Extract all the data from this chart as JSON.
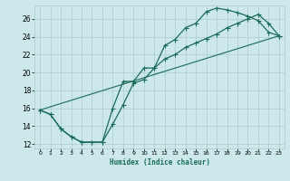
{
  "xlabel": "Humidex (Indice chaleur)",
  "bg_color": "#cce8ea",
  "grid_color": "#aacccc",
  "line_color": "#1a6b5a",
  "xlim": [
    -0.5,
    23.5
  ],
  "ylim": [
    11.5,
    27.5
  ],
  "xticks": [
    0,
    1,
    2,
    3,
    4,
    5,
    6,
    7,
    8,
    9,
    10,
    11,
    12,
    13,
    14,
    15,
    16,
    17,
    18,
    19,
    20,
    21,
    22,
    23
  ],
  "yticks": [
    12,
    14,
    16,
    18,
    20,
    22,
    24,
    26
  ],
  "line1_x": [
    0,
    1,
    2,
    3,
    4,
    5,
    6,
    7,
    8,
    9,
    10,
    11,
    12,
    13,
    14,
    15,
    16,
    17,
    18,
    19,
    20,
    21,
    22,
    23
  ],
  "line1_y": [
    15.8,
    15.3,
    13.7,
    12.8,
    12.2,
    12.2,
    12.2,
    14.2,
    16.4,
    18.8,
    19.2,
    20.5,
    23.0,
    23.7,
    25.0,
    25.5,
    26.8,
    27.2,
    27.0,
    26.7,
    26.3,
    25.8,
    24.5,
    24.1
  ],
  "line2_x": [
    0,
    1,
    2,
    3,
    4,
    5,
    6,
    7,
    8,
    9,
    10,
    11,
    12,
    13,
    14,
    15,
    16,
    17,
    18,
    19,
    20,
    21,
    22,
    23
  ],
  "line2_y": [
    15.8,
    15.3,
    13.7,
    12.8,
    12.2,
    12.2,
    12.2,
    16.0,
    19.0,
    19.0,
    20.5,
    20.5,
    21.5,
    22.0,
    22.8,
    23.3,
    23.8,
    24.3,
    25.0,
    25.5,
    26.0,
    26.5,
    25.5,
    24.1
  ],
  "line3_x": [
    0,
    23
  ],
  "line3_y": [
    15.8,
    24.1
  ]
}
